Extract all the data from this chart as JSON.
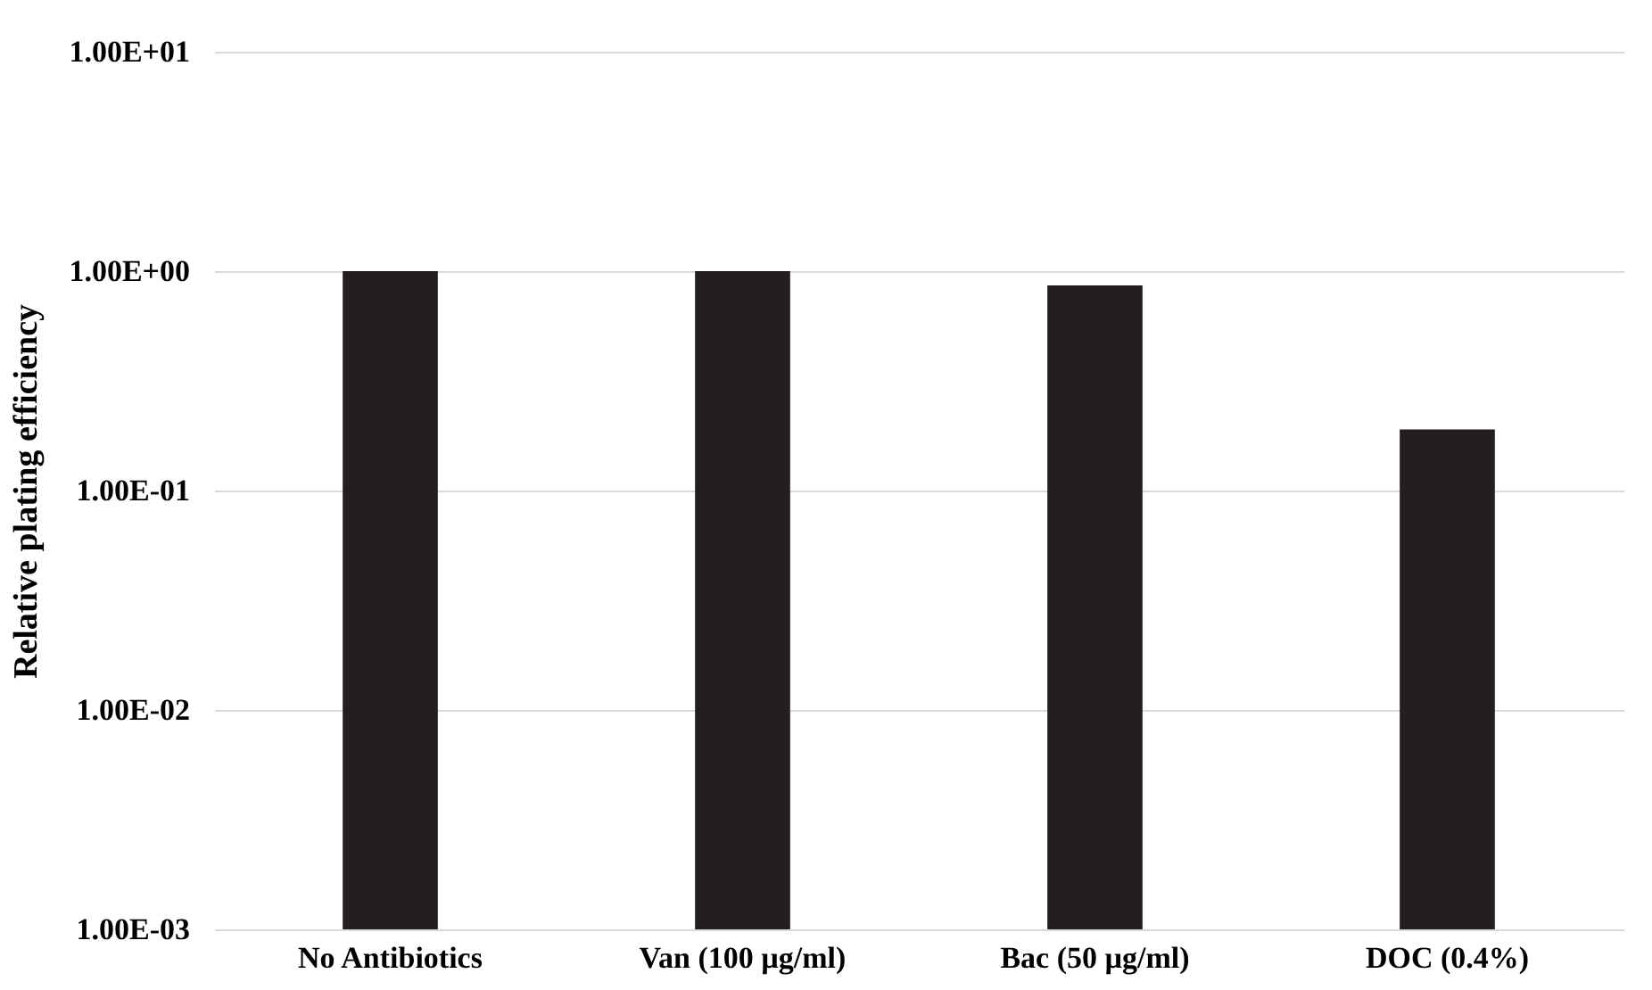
{
  "chart_data": {
    "type": "bar",
    "ylabel": "Relative plating efficiency",
    "categories": [
      "No Antibiotics",
      "Van (100 µg/ml)",
      "Bac (50 µg/ml)",
      "DOC (0.4%)"
    ],
    "values": [
      1,
      1,
      0.86,
      0.19
    ],
    "color": "#231f20",
    "log": "y",
    "ylim": [
      0.001,
      10
    ],
    "yticks": [
      {
        "value": 0.001,
        "label": "1.00E-03"
      },
      {
        "value": 0.01,
        "label": "1.00E-02"
      },
      {
        "value": 0.1,
        "label": "1.00E-01"
      },
      {
        "value": 1,
        "label": "1.00E+00"
      },
      {
        "value": 10,
        "label": "1.00E+01"
      }
    ],
    "grid": "y"
  }
}
